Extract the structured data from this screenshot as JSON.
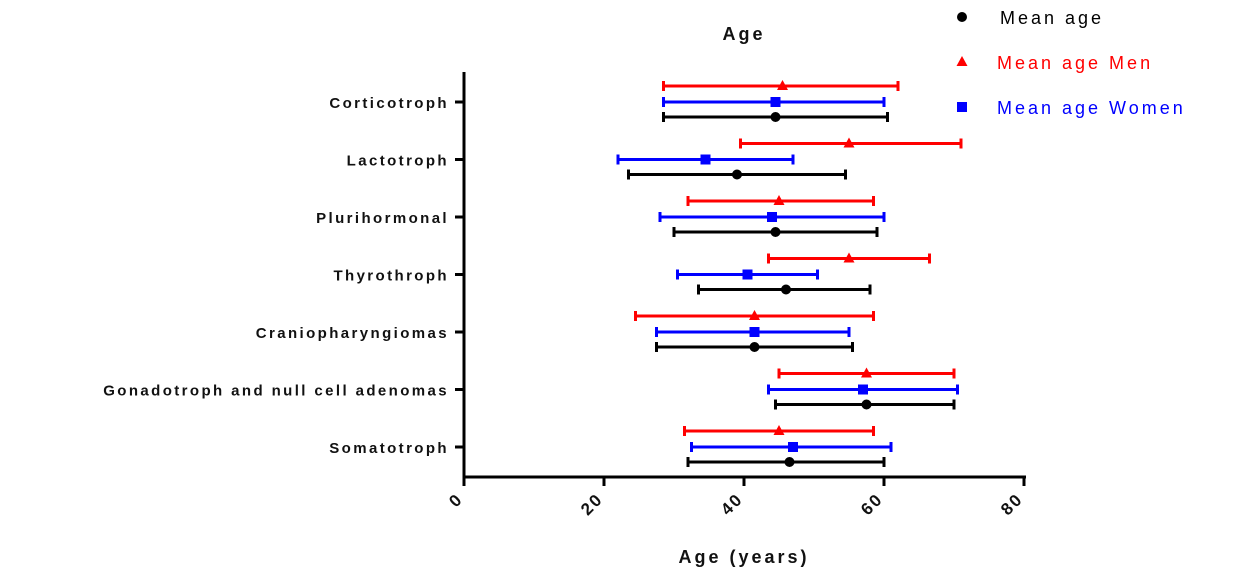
{
  "chart_data": {
    "type": "scatter",
    "title": "Age",
    "xlabel": "Age (years)",
    "ylabel": "",
    "xlim": [
      0,
      80
    ],
    "xticks": [
      "0",
      "20",
      "40",
      "60",
      "80"
    ],
    "categories": [
      "Corticotroph",
      "Lactotroph",
      "Plurihormonal",
      "Thyrothroph",
      "Craniopharyngiomas",
      "Gonadotroph and null cell adenomas",
      "Somatotroph"
    ],
    "series": [
      {
        "name": "Mean age",
        "color": "#000000",
        "marker": "circle",
        "mean": [
          44.5,
          39,
          44.5,
          46,
          41.5,
          57.5,
          46.5
        ],
        "low": [
          28.5,
          23.5,
          30,
          33.5,
          27.5,
          44.5,
          32
        ],
        "high": [
          60.5,
          54.5,
          59,
          58,
          55.5,
          70,
          60
        ]
      },
      {
        "name": "Mean age Men",
        "color": "#ff0000",
        "marker": "triangle",
        "mean": [
          45.5,
          55,
          45,
          55,
          41.5,
          57.5,
          45
        ],
        "low": [
          28.5,
          39.5,
          32,
          43.5,
          24.5,
          45,
          31.5
        ],
        "high": [
          62,
          71,
          58.5,
          66.5,
          58.5,
          70,
          58.5
        ]
      },
      {
        "name": "Mean age Women",
        "color": "#0000ff",
        "marker": "square",
        "mean": [
          44.5,
          34.5,
          44,
          40.5,
          41.5,
          57,
          47
        ],
        "low": [
          28.5,
          22,
          28,
          30.5,
          27.5,
          43.5,
          32.5
        ],
        "high": [
          60,
          47,
          60,
          50.5,
          55,
          70.5,
          61
        ]
      }
    ],
    "legend": "top-right"
  }
}
